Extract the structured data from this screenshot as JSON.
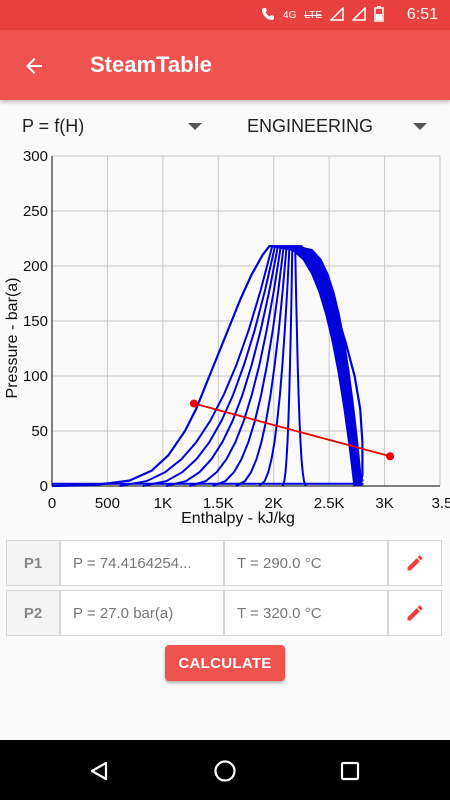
{
  "status_bar": {
    "time": "6:51",
    "network": "4G",
    "lte": "LTE"
  },
  "app_bar": {
    "title": "SteamTable",
    "back_icon": "arrow-back-icon"
  },
  "selectors": {
    "mode": "P = f(H)",
    "units": "ENGINEERING"
  },
  "chart_data": {
    "type": "line",
    "xlabel": "Enthalpy - kJ/kg",
    "ylabel": "Pressure - bar(a)",
    "xlim": [
      0,
      3500
    ],
    "ylim": [
      0,
      300
    ],
    "x_ticks": [
      "0",
      "500",
      "1K",
      "1.5K",
      "2K",
      "2.5K",
      "3K",
      "3.5"
    ],
    "y_ticks": [
      "0",
      "50",
      "100",
      "150",
      "200",
      "250",
      "300"
    ],
    "grid": true,
    "dome_color": "#0000dd",
    "process_color": "#ee0000",
    "process_points": [
      {
        "x": 1280,
        "y": 75
      },
      {
        "x": 3050,
        "y": 27
      }
    ],
    "dome_curves": [
      {
        "left": [
          [
            0,
            0
          ],
          [
            500,
            2
          ],
          [
            800,
            10
          ],
          [
            1000,
            25
          ],
          [
            1200,
            55
          ],
          [
            1400,
            100
          ],
          [
            1600,
            150
          ],
          [
            1800,
            195
          ],
          [
            1950,
            218
          ]
        ],
        "right": [
          [
            2200,
            218
          ],
          [
            2400,
            200
          ],
          [
            2650,
            150
          ],
          [
            2780,
            100
          ],
          [
            2800,
            50
          ],
          [
            2800,
            0
          ]
        ]
      },
      {
        "left": [
          [
            1000,
            0
          ],
          [
            1200,
            20
          ],
          [
            1400,
            60
          ],
          [
            1600,
            110
          ],
          [
            1800,
            170
          ],
          [
            1980,
            218
          ]
        ],
        "right": [
          [
            2150,
            218
          ],
          [
            2350,
            180
          ],
          [
            2550,
            130
          ],
          [
            2700,
            70
          ],
          [
            2750,
            0
          ]
        ]
      }
    ]
  },
  "table": {
    "rows": [
      {
        "label": "P1",
        "pressure": "P = 74.4164254...",
        "temperature": "T = 290.0 °C",
        "edit_icon": "pencil-icon"
      },
      {
        "label": "P2",
        "pressure": "P = 27.0 bar(a)",
        "temperature": "T = 320.0 °C",
        "edit_icon": "pencil-icon"
      }
    ]
  },
  "calculate_label": "CALCULATE"
}
